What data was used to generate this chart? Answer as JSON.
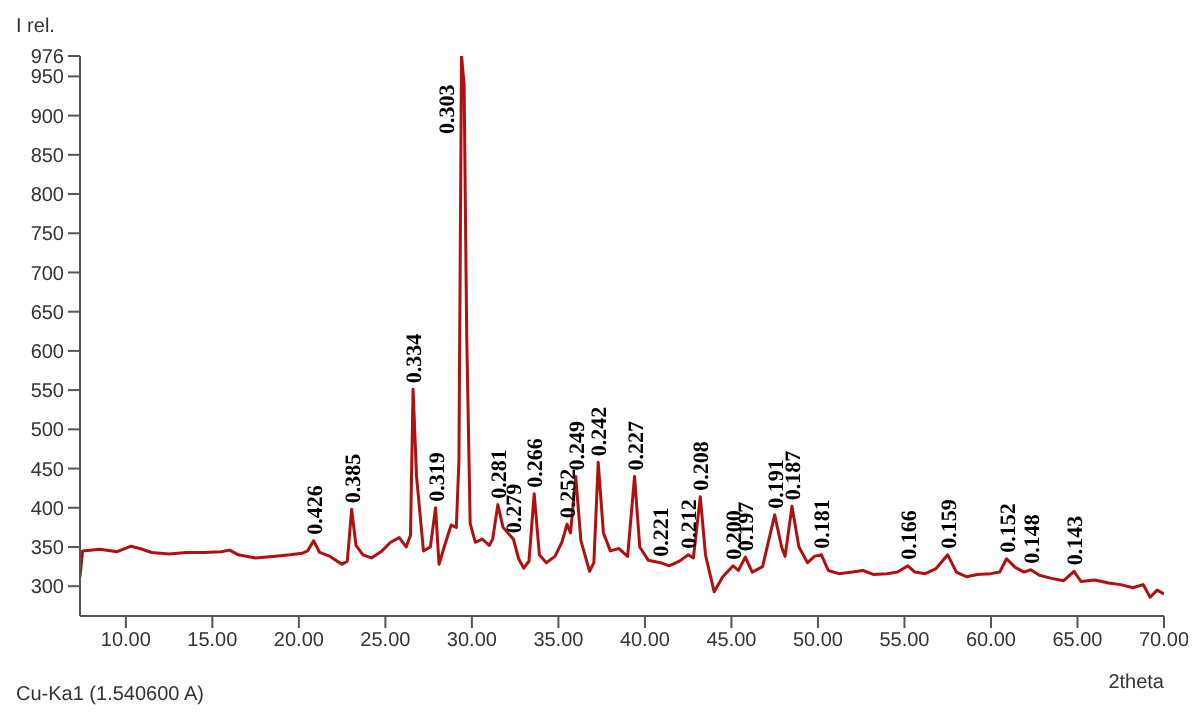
{
  "chart_data": {
    "type": "line",
    "xlabel": "2theta",
    "ylabel": "I rel.",
    "xlim": [
      7.35,
      70
    ],
    "ylim": [
      262,
      976
    ],
    "xticks": [
      {
        "value": 10,
        "label": "10.00"
      },
      {
        "value": 15,
        "label": "15.00"
      },
      {
        "value": 20,
        "label": "20.00"
      },
      {
        "value": 25,
        "label": "25.00"
      },
      {
        "value": 30,
        "label": "30.00"
      },
      {
        "value": 35,
        "label": "35.00"
      },
      {
        "value": 40,
        "label": "40.00"
      },
      {
        "value": 45,
        "label": "45.00"
      },
      {
        "value": 50,
        "label": "50.00"
      },
      {
        "value": 55,
        "label": "55.00"
      },
      {
        "value": 60,
        "label": "60.00"
      },
      {
        "value": 65,
        "label": "65.00"
      },
      {
        "value": 70,
        "label": "70.00"
      }
    ],
    "yticks": [
      300,
      350,
      400,
      450,
      500,
      550,
      600,
      650,
      700,
      750,
      800,
      850,
      900,
      950,
      976
    ],
    "grid": false,
    "marker": "none",
    "series": [
      {
        "color": "#b01010",
        "x": [
          7.35,
          7.5,
          8.5,
          9.5,
          10.3,
          10.8,
          11.5,
          12.5,
          13.5,
          14.5,
          15.5,
          16,
          16.5,
          17.5,
          18.5,
          19.5,
          20.2,
          20.5,
          20.85,
          21.2,
          21.8,
          22.2,
          22.5,
          22.8,
          23.05,
          23.3,
          23.7,
          24.2,
          24.8,
          25.3,
          25.8,
          26.2,
          26.45,
          26.6,
          26.8,
          27.2,
          27.6,
          27.9,
          28.1,
          28.4,
          28.8,
          29.1,
          29.25,
          29.4,
          29.55,
          29.7,
          29.9,
          30.2,
          30.6,
          31,
          31.2,
          31.5,
          31.8,
          32.4,
          32.7,
          33,
          33.3,
          33.6,
          33.9,
          34.3,
          34.8,
          35.2,
          35.5,
          35.7,
          36,
          36.3,
          36.8,
          37.05,
          37.3,
          37.6,
          38,
          38.5,
          39,
          39.4,
          39.7,
          40.2,
          40.9,
          41.4,
          42,
          42.5,
          42.8,
          43.2,
          43.5,
          44,
          44.5,
          45.1,
          45.4,
          45.8,
          46.2,
          46.8,
          47.5,
          47.9,
          48.1,
          48.5,
          48.9,
          49.4,
          49.8,
          50.2,
          50.6,
          51.2,
          52,
          52.6,
          53.2,
          54,
          54.6,
          55.2,
          55.6,
          56.2,
          56.8,
          57.5,
          58,
          58.6,
          59.2,
          60,
          60.5,
          60.9,
          61.4,
          61.9,
          62.3,
          62.8,
          63.5,
          64.2,
          64.8,
          65.2,
          66,
          66.8,
          67.5,
          68.2,
          68.8,
          69.2,
          69.6,
          70
        ],
        "values": [
          312,
          345,
          347,
          344,
          351,
          348,
          343,
          341,
          343,
          343,
          344,
          346,
          340,
          336,
          338,
          340,
          342,
          345,
          358,
          343,
          338,
          332,
          328,
          332,
          398,
          352,
          340,
          336,
          345,
          356,
          362,
          350,
          365,
          551,
          440,
          345,
          350,
          400,
          328,
          350,
          378,
          375,
          460,
          976,
          940,
          620,
          380,
          356,
          360,
          352,
          360,
          404,
          375,
          360,
          335,
          323,
          332,
          418,
          340,
          330,
          338,
          356,
          379,
          368,
          440,
          358,
          319,
          330,
          458,
          368,
          345,
          348,
          338,
          440,
          350,
          333,
          330,
          326,
          332,
          340,
          336,
          414,
          340,
          293,
          312,
          326,
          320,
          337,
          318,
          325,
          391,
          350,
          338,
          402,
          350,
          330,
          338,
          340,
          320,
          316,
          318,
          320,
          315,
          316,
          318,
          326,
          318,
          316,
          322,
          340,
          318,
          312,
          315,
          316,
          318,
          335,
          324,
          318,
          321,
          314,
          310,
          307,
          319,
          306,
          308,
          304,
          302,
          298,
          302,
          286,
          295,
          290
        ]
      }
    ],
    "annotations": [
      {
        "text": "0.426",
        "x": 20.85,
        "y": 358
      },
      {
        "text": "0.385",
        "x": 23.05,
        "y": 398
      },
      {
        "text": "0.334",
        "x": 26.6,
        "y": 551
      },
      {
        "text": "0.319",
        "x": 27.9,
        "y": 400
      },
      {
        "text": "0.303",
        "x": 29.4,
        "y": 976
      },
      {
        "text": "0.281",
        "x": 31.5,
        "y": 404
      },
      {
        "text": "0.279",
        "x": 32.4,
        "y": 360
      },
      {
        "text": "0.266",
        "x": 33.6,
        "y": 418
      },
      {
        "text": "0.252",
        "x": 35.5,
        "y": 379
      },
      {
        "text": "0.249",
        "x": 36,
        "y": 440
      },
      {
        "text": "0.242",
        "x": 37.3,
        "y": 458
      },
      {
        "text": "0.227",
        "x": 39.4,
        "y": 440
      },
      {
        "text": "0.221",
        "x": 40.9,
        "y": 330
      },
      {
        "text": "0.212",
        "x": 42.5,
        "y": 340
      },
      {
        "text": "0.208",
        "x": 43.2,
        "y": 414
      },
      {
        "text": "0.200",
        "x": 45.1,
        "y": 326
      },
      {
        "text": "0.197",
        "x": 45.8,
        "y": 337
      },
      {
        "text": "0.191",
        "x": 47.5,
        "y": 391
      },
      {
        "text": "0.187",
        "x": 48.5,
        "y": 402
      },
      {
        "text": "0.181",
        "x": 50.2,
        "y": 340
      },
      {
        "text": "0.166",
        "x": 55.2,
        "y": 326
      },
      {
        "text": "0.159",
        "x": 57.5,
        "y": 340
      },
      {
        "text": "0.152",
        "x": 60.9,
        "y": 335
      },
      {
        "text": "0.148",
        "x": 62.3,
        "y": 321
      },
      {
        "text": "0.143",
        "x": 64.8,
        "y": 319
      },
      "Cu-Ka1 (1.540600 A)"
    ]
  }
}
